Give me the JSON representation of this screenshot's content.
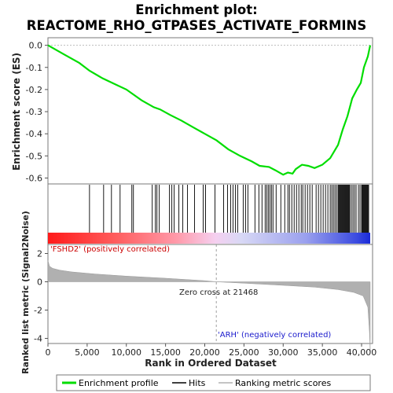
{
  "chart_data": {
    "type": "line",
    "title_line1": "Enrichment plot:",
    "title_line2": "REACTOME_RHO_GTPASES_ACTIVATE_FORMINS",
    "es_panel": {
      "ylabel": "Enrichment score (ES)",
      "ylim": [
        -0.62,
        0.02
      ],
      "yticks": [
        "0.0",
        "-0.1",
        "-0.2",
        "-0.3",
        "-0.4",
        "-0.5",
        "-0.6"
      ],
      "ytick_values": [
        0.0,
        -0.1,
        -0.2,
        -0.3,
        -0.4,
        -0.5,
        -0.6
      ],
      "line_color": "#00dd00",
      "series": {
        "name": "Enrichment profile",
        "x": [
          0,
          2000,
          4000,
          5300,
          7000,
          8500,
          10000,
          10800,
          12000,
          13500,
          14300,
          15600,
          17000,
          18500,
          20000,
          21500,
          23000,
          24500,
          26000,
          27000,
          28200,
          29000,
          30000,
          30600,
          31200,
          31600,
          32400,
          33200,
          34000,
          35000,
          36000,
          37000,
          37600,
          38200,
          38800,
          39400,
          39900,
          40300,
          40800,
          41100
        ],
        "y": [
          0.0,
          -0.04,
          -0.08,
          -0.115,
          -0.15,
          -0.175,
          -0.2,
          -0.22,
          -0.25,
          -0.28,
          -0.29,
          -0.315,
          -0.34,
          -0.37,
          -0.4,
          -0.43,
          -0.47,
          -0.5,
          -0.525,
          -0.545,
          -0.55,
          -0.565,
          -0.585,
          -0.575,
          -0.58,
          -0.56,
          -0.54,
          -0.545,
          -0.555,
          -0.54,
          -0.51,
          -0.45,
          -0.38,
          -0.32,
          -0.24,
          -0.2,
          -0.17,
          -0.1,
          -0.05,
          0.0
        ]
      }
    },
    "hits": {
      "positions": [
        5300,
        7100,
        8100,
        9200,
        10700,
        10900,
        13300,
        13700,
        13900,
        14200,
        15500,
        15800,
        16100,
        16700,
        17200,
        17800,
        18700,
        19800,
        20100,
        21300,
        22400,
        22900,
        23300,
        23600,
        23900,
        24200,
        24900,
        25200,
        25500,
        26400,
        26900,
        27300,
        27700,
        27900,
        28100,
        28300,
        28500,
        28700,
        29100,
        29700,
        30200,
        30600,
        30800,
        31100,
        31400,
        31700,
        32000,
        32300,
        32500,
        32800,
        33100,
        33400,
        33700,
        34200,
        34500,
        34800,
        35100,
        35400,
        35700,
        36000,
        36200,
        36400,
        36600,
        36800,
        37000,
        37100,
        37200,
        37300,
        37400,
        37500,
        37600,
        37700,
        37800,
        37900,
        38000,
        38100,
        38200,
        38300,
        38400,
        38500,
        38700,
        38900,
        39100,
        39300,
        39600,
        39800,
        40000,
        40100,
        40200,
        40300,
        40400,
        40500,
        40600,
        40700,
        40800,
        40900
      ]
    },
    "ranked_metric": {
      "ylabel": "Ranked list metric (Signal2Noise)",
      "ylim": [
        -5,
        3
      ],
      "yticks": [
        "2",
        "0",
        "-2",
        "-4"
      ],
      "ytick_values": [
        2,
        0,
        -2,
        -4
      ],
      "fill_color": "#b0b0b0",
      "x": [
        0,
        200,
        600,
        1500,
        3000,
        6000,
        10000,
        15000,
        20000,
        21468,
        25000,
        30000,
        34000,
        37000,
        39000,
        40200,
        40800,
        41000,
        41100
      ],
      "y": [
        1.5,
        1.1,
        0.95,
        0.82,
        0.7,
        0.55,
        0.4,
        0.25,
        0.08,
        0.0,
        -0.1,
        -0.25,
        -0.38,
        -0.55,
        -0.75,
        -1.0,
        -1.8,
        -3.5,
        -4.9
      ]
    },
    "zero_cross_label": "Zero cross at 21468",
    "zero_cross": 21468,
    "pos_label": "'FSHD2' (positively correlated)",
    "neg_label": "'ARH' (negatively correlated)",
    "xlabel": "Rank in Ordered Dataset",
    "xlim": [
      0,
      42000
    ],
    "xticks": [
      "0",
      "5,000",
      "10,000",
      "15,000",
      "20,000",
      "25,000",
      "30,000",
      "35,000",
      "40,000"
    ],
    "xtick_values": [
      0,
      5000,
      10000,
      15000,
      20000,
      25000,
      30000,
      35000,
      40000
    ],
    "n_genes": 41100,
    "legend": [
      {
        "label": "Enrichment profile",
        "color": "#00dd00"
      },
      {
        "label": "Hits",
        "color": "#000000"
      },
      {
        "label": "Ranking metric scores",
        "color": "#b0b0b0"
      }
    ]
  }
}
